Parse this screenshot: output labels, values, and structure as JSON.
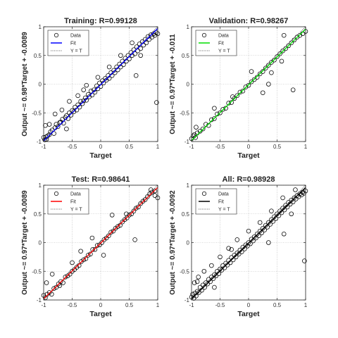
{
  "chart_data": [
    {
      "type": "scatter",
      "title": "Training: R=0.99128",
      "xlabel": "Target",
      "ylabel": "Output ~= 0.98*Target + -0.0089",
      "xlim": [
        -1,
        1
      ],
      "ylim": [
        -1,
        1
      ],
      "xticks": [
        -1,
        -0.5,
        0,
        0.5,
        1
      ],
      "yticks": [
        -1,
        -0.5,
        0,
        0.5,
        1
      ],
      "xtick_labels": [
        "-1",
        "-0.5",
        "0",
        "0.5",
        "1"
      ],
      "ytick_labels": [
        "-1",
        "-0.5",
        "0",
        "0.5",
        "1"
      ],
      "fit": {
        "slope": 0.98,
        "intercept": -0.0089,
        "color": "#0000ff"
      },
      "legend": [
        "Data",
        "Fit",
        "Y = T"
      ],
      "legend_position": "top-left",
      "x": [
        -1,
        -0.98,
        -0.96,
        -0.95,
        -0.93,
        -0.9,
        -0.88,
        -0.85,
        -0.82,
        -0.8,
        -0.78,
        -0.75,
        -0.72,
        -0.7,
        -0.67,
        -0.65,
        -0.62,
        -0.6,
        -0.57,
        -0.55,
        -0.52,
        -0.5,
        -0.47,
        -0.45,
        -0.42,
        -0.4,
        -0.37,
        -0.35,
        -0.32,
        -0.3,
        -0.27,
        -0.25,
        -0.22,
        -0.2,
        -0.17,
        -0.15,
        -0.12,
        -0.1,
        -0.07,
        -0.05,
        -0.02,
        0,
        0.03,
        0.05,
        0.08,
        0.1,
        0.13,
        0.15,
        0.18,
        0.2,
        0.23,
        0.25,
        0.28,
        0.3,
        0.33,
        0.35,
        0.38,
        0.4,
        0.43,
        0.45,
        0.48,
        0.5,
        0.53,
        0.55,
        0.58,
        0.6,
        0.63,
        0.65,
        0.68,
        0.7,
        0.73,
        0.75,
        0.78,
        0.8,
        0.83,
        0.85,
        0.88,
        0.9,
        0.93,
        0.95,
        0.97,
        1,
        -0.97,
        -0.9,
        -0.8,
        -0.68,
        -0.55,
        -0.4,
        -0.25,
        -0.05,
        0.15,
        0.35,
        0.55,
        0.7,
        0.62,
        0.98,
        -0.6,
        -0.3
      ],
      "y": [
        -0.93,
        -0.97,
        -0.92,
        -0.96,
        -0.9,
        -0.88,
        -0.83,
        -0.8,
        -0.86,
        -0.76,
        -0.7,
        -0.74,
        -0.67,
        -0.66,
        -0.61,
        -0.68,
        -0.58,
        -0.55,
        -0.6,
        -0.5,
        -0.54,
        -0.46,
        -0.48,
        -0.4,
        -0.45,
        -0.36,
        -0.4,
        -0.3,
        -0.34,
        -0.29,
        -0.24,
        -0.28,
        -0.18,
        -0.22,
        -0.12,
        -0.19,
        -0.1,
        -0.14,
        -0.03,
        -0.08,
        0.02,
        -0.04,
        0.06,
        0.02,
        0.1,
        0.07,
        0.15,
        0.1,
        0.2,
        0.15,
        0.24,
        0.2,
        0.3,
        0.25,
        0.35,
        0.3,
        0.4,
        0.34,
        0.45,
        0.4,
        0.5,
        0.44,
        0.55,
        0.5,
        0.6,
        0.53,
        0.65,
        0.58,
        0.7,
        0.62,
        0.74,
        0.68,
        0.78,
        0.72,
        0.83,
        0.78,
        0.86,
        0.82,
        0.88,
        0.85,
        0.9,
        0.88,
        -0.72,
        -0.7,
        -0.52,
        -0.45,
        -0.3,
        -0.2,
        -0.02,
        0.12,
        0.3,
        0.5,
        0.72,
        0.5,
        0.15,
        -0.32,
        -0.78,
        -0.1
      ]
    },
    {
      "type": "scatter",
      "title": "Validation: R=0.98267",
      "xlabel": "Target",
      "ylabel": "Output ~= 0.97*Target + -0.011",
      "xlim": [
        -1,
        1
      ],
      "ylim": [
        -1,
        1
      ],
      "xticks": [
        -1,
        -0.5,
        0,
        0.5,
        1
      ],
      "yticks": [
        -1,
        -0.5,
        0,
        0.5,
        1
      ],
      "xtick_labels": [
        "-1",
        "-0.5",
        "0",
        "0.5",
        "1"
      ],
      "ytick_labels": [
        "-1",
        "-0.5",
        "0",
        "0.5",
        "1"
      ],
      "fit": {
        "slope": 0.97,
        "intercept": -0.011,
        "color": "#00dd00"
      },
      "legend": [
        "Data",
        "Fit",
        "Y = T"
      ],
      "legend_position": "top-left",
      "x": [
        -1,
        -0.97,
        -0.93,
        -0.9,
        -0.85,
        -0.8,
        -0.75,
        -0.7,
        -0.65,
        -0.6,
        -0.55,
        -0.5,
        -0.45,
        -0.4,
        -0.35,
        -0.3,
        -0.25,
        -0.2,
        -0.15,
        -0.1,
        -0.05,
        0,
        0.05,
        0.1,
        0.15,
        0.2,
        0.25,
        0.3,
        0.35,
        0.4,
        0.45,
        0.5,
        0.55,
        0.6,
        0.65,
        0.7,
        0.75,
        0.8,
        0.85,
        0.9,
        0.95,
        1,
        -0.92,
        -0.6,
        -0.28,
        0.05,
        0.4,
        0.58,
        0.78,
        0.62,
        0.25,
        0.35,
        -0.95
      ],
      "y": [
        -0.95,
        -0.9,
        -0.93,
        -0.85,
        -0.82,
        -0.78,
        -0.7,
        -0.72,
        -0.62,
        -0.6,
        -0.52,
        -0.5,
        -0.44,
        -0.42,
        -0.33,
        -0.32,
        -0.25,
        -0.2,
        -0.14,
        -0.12,
        -0.05,
        -0.02,
        0.04,
        0.08,
        0.12,
        0.18,
        0.22,
        0.28,
        0.33,
        0.38,
        0.42,
        0.48,
        0.53,
        0.58,
        0.62,
        0.67,
        0.72,
        0.77,
        0.82,
        0.85,
        0.88,
        0.92,
        -0.75,
        -0.42,
        -0.22,
        0.22,
        0.2,
        0.4,
        -0.1,
        0.85,
        -0.15,
        0.0,
        -0.88
      ]
    },
    {
      "type": "scatter",
      "title": "Test: R=0.98641",
      "xlabel": "Target",
      "ylabel": "Output ~= 0.97*Target + -0.0089",
      "xlim": [
        -1,
        1
      ],
      "ylim": [
        -1,
        1
      ],
      "xticks": [
        -1,
        -0.5,
        0,
        0.5,
        1
      ],
      "yticks": [
        -1,
        -0.5,
        0,
        0.5,
        1
      ],
      "xtick_labels": [
        "-1",
        "-0.5",
        "0",
        "0.5",
        "1"
      ],
      "ytick_labels": [
        "-1",
        "-0.5",
        "0",
        "0.5",
        "1"
      ],
      "fit": {
        "slope": 0.97,
        "intercept": -0.0089,
        "color": "#ff0000"
      },
      "legend": [
        "Data",
        "Fit",
        "Y = T"
      ],
      "legend_position": "top-left",
      "x": [
        -1,
        -0.97,
        -0.94,
        -0.9,
        -0.86,
        -0.82,
        -0.78,
        -0.74,
        -0.7,
        -0.66,
        -0.62,
        -0.58,
        -0.54,
        -0.5,
        -0.46,
        -0.42,
        -0.38,
        -0.34,
        -0.3,
        -0.26,
        -0.22,
        -0.18,
        -0.14,
        -0.1,
        -0.06,
        -0.02,
        0.02,
        0.06,
        0.1,
        0.14,
        0.18,
        0.22,
        0.26,
        0.3,
        0.34,
        0.38,
        0.42,
        0.46,
        0.5,
        0.54,
        0.58,
        0.62,
        0.66,
        0.7,
        0.74,
        0.78,
        0.82,
        0.86,
        0.9,
        0.95,
        1,
        -0.85,
        -0.72,
        -0.5,
        -0.35,
        -0.15,
        0.05,
        0.2,
        0.45,
        0.6,
        0.95,
        -0.95,
        0.88
      ],
      "y": [
        -0.92,
        -0.96,
        -0.9,
        -0.87,
        -0.9,
        -0.8,
        -0.78,
        -0.72,
        -0.68,
        -0.7,
        -0.6,
        -0.58,
        -0.55,
        -0.5,
        -0.47,
        -0.43,
        -0.4,
        -0.33,
        -0.3,
        -0.28,
        -0.22,
        -0.2,
        -0.12,
        -0.12,
        -0.05,
        -0.04,
        0.0,
        0.05,
        0.08,
        0.12,
        0.18,
        0.2,
        0.25,
        0.28,
        0.3,
        0.36,
        0.4,
        0.43,
        0.48,
        0.5,
        0.55,
        0.6,
        0.62,
        0.68,
        0.72,
        0.75,
        0.8,
        0.85,
        0.88,
        0.82,
        0.78,
        -0.55,
        -0.75,
        -0.35,
        -0.15,
        0.08,
        -0.22,
        0.48,
        0.5,
        0.05,
        0.9,
        -0.7,
        0.92
      ]
    },
    {
      "type": "scatter",
      "title": "All: R=0.98928",
      "xlabel": "Target",
      "ylabel": "Output ~= 0.97*Target + -0.0092",
      "xlim": [
        -1,
        1
      ],
      "ylim": [
        -1,
        1
      ],
      "xticks": [
        -1,
        -0.5,
        0,
        0.5,
        1
      ],
      "yticks": [
        -1,
        -0.5,
        0,
        0.5,
        1
      ],
      "xtick_labels": [
        "-1",
        "-0.5",
        "0",
        "0.5",
        "1"
      ],
      "ytick_labels": [
        "-1",
        "-0.5",
        "0",
        "0.5",
        "1"
      ],
      "fit": {
        "slope": 0.97,
        "intercept": -0.0092,
        "color": "#000000"
      },
      "legend": [
        "Data",
        "Fit",
        "Y = T"
      ],
      "legend_position": "top-left",
      "x": [
        -1,
        -0.98,
        -0.96,
        -0.94,
        -0.92,
        -0.9,
        -0.87,
        -0.85,
        -0.82,
        -0.8,
        -0.77,
        -0.75,
        -0.72,
        -0.7,
        -0.67,
        -0.65,
        -0.62,
        -0.6,
        -0.57,
        -0.55,
        -0.52,
        -0.5,
        -0.47,
        -0.45,
        -0.42,
        -0.4,
        -0.37,
        -0.35,
        -0.32,
        -0.3,
        -0.27,
        -0.25,
        -0.22,
        -0.2,
        -0.17,
        -0.15,
        -0.12,
        -0.1,
        -0.07,
        -0.05,
        -0.02,
        0,
        0.03,
        0.05,
        0.08,
        0.1,
        0.13,
        0.15,
        0.18,
        0.2,
        0.23,
        0.25,
        0.28,
        0.3,
        0.33,
        0.35,
        0.38,
        0.4,
        0.43,
        0.45,
        0.48,
        0.5,
        0.53,
        0.55,
        0.58,
        0.6,
        0.63,
        0.65,
        0.68,
        0.7,
        0.73,
        0.75,
        0.78,
        0.8,
        0.83,
        0.85,
        0.88,
        0.9,
        0.93,
        0.95,
        0.97,
        1,
        -0.95,
        -0.88,
        -0.78,
        -0.65,
        -0.5,
        -0.35,
        -0.2,
        0.0,
        0.2,
        0.4,
        0.6,
        0.75,
        0.62,
        0.98,
        -0.6,
        -0.3,
        0.35,
        -0.9,
        0.82
      ],
      "y": [
        -0.95,
        -0.9,
        -0.97,
        -0.88,
        -0.93,
        -0.85,
        -0.87,
        -0.78,
        -0.83,
        -0.74,
        -0.78,
        -0.7,
        -0.72,
        -0.64,
        -0.68,
        -0.6,
        -0.63,
        -0.56,
        -0.58,
        -0.5,
        -0.54,
        -0.46,
        -0.48,
        -0.4,
        -0.44,
        -0.36,
        -0.39,
        -0.31,
        -0.35,
        -0.26,
        -0.3,
        -0.22,
        -0.25,
        -0.18,
        -0.2,
        -0.13,
        -0.16,
        -0.08,
        -0.11,
        -0.04,
        -0.06,
        0.0,
        -0.02,
        0.06,
        0.03,
        0.1,
        0.08,
        0.15,
        0.12,
        0.2,
        0.17,
        0.25,
        0.22,
        0.3,
        0.27,
        0.35,
        0.32,
        0.4,
        0.37,
        0.45,
        0.42,
        0.5,
        0.47,
        0.55,
        0.52,
        0.6,
        0.57,
        0.65,
        0.62,
        0.7,
        0.67,
        0.74,
        0.71,
        0.78,
        0.76,
        0.82,
        0.8,
        0.85,
        0.83,
        0.88,
        0.86,
        0.9,
        -0.7,
        -0.6,
        -0.5,
        -0.4,
        -0.25,
        -0.1,
        0.05,
        0.2,
        0.35,
        0.55,
        0.78,
        0.5,
        0.15,
        -0.32,
        -0.78,
        -0.12,
        0.0,
        -0.68,
        0.92
      ]
    }
  ]
}
